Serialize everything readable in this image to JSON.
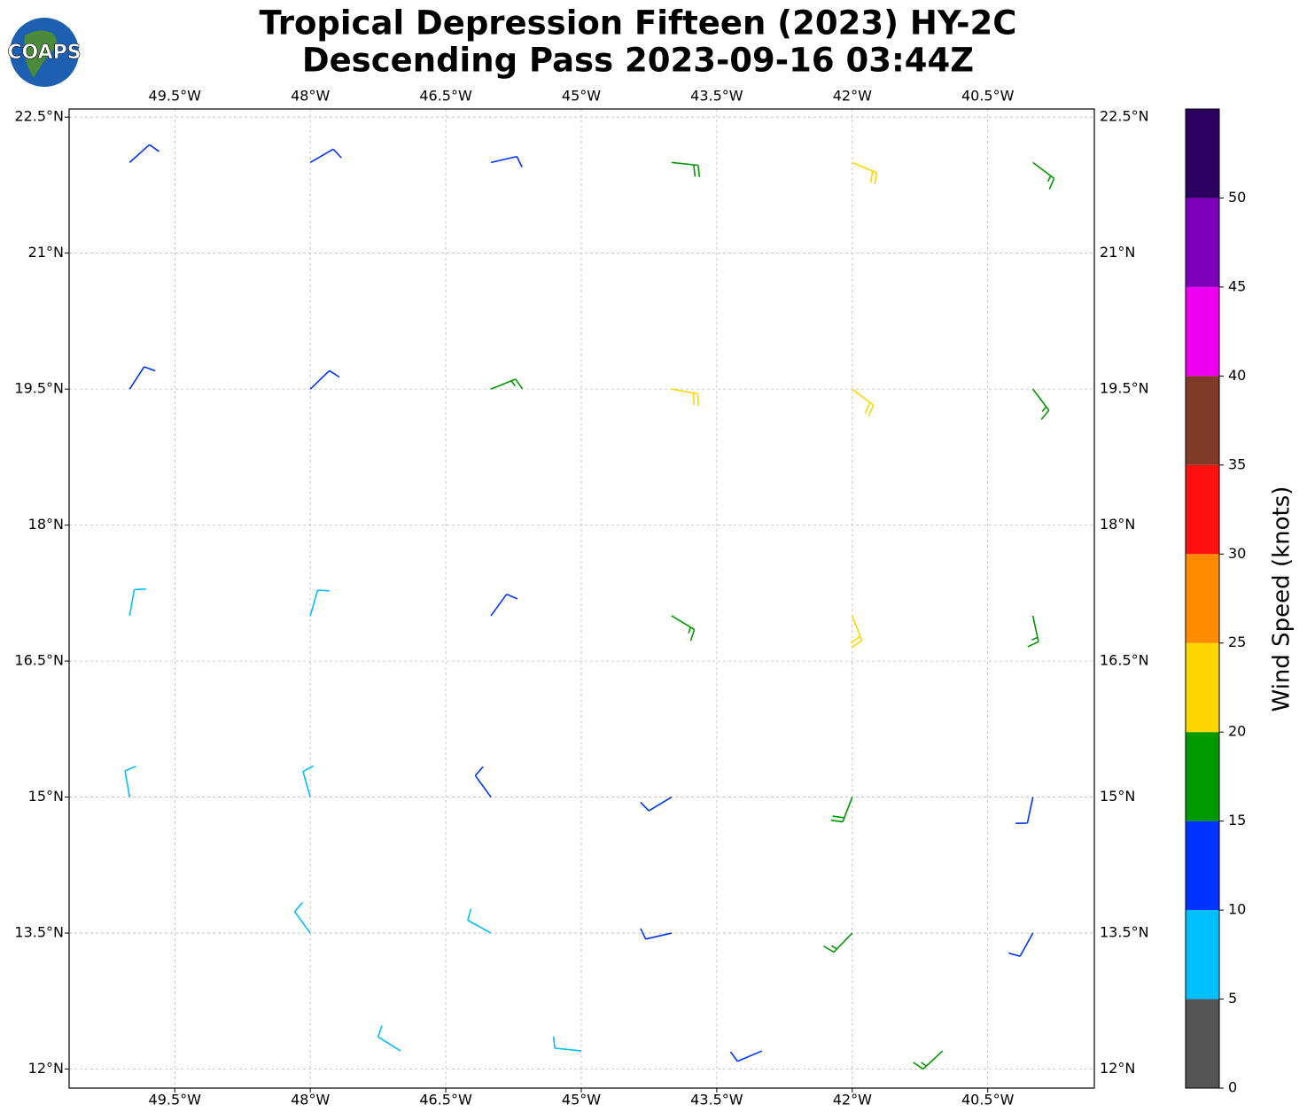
{
  "logo": "COAPS",
  "chart_data": {
    "type": "barbs",
    "title": "Tropical Depression Fifteen (2023) HY-2C",
    "subtitle": "Descending Pass 2023-09-16 03:44Z",
    "xlim": [
      -50.67,
      -39.32
    ],
    "ylim": [
      11.79,
      22.59
    ],
    "xticks": [
      {
        "value": -49.5,
        "label": "49.5°W"
      },
      {
        "value": -48,
        "label": "48°W"
      },
      {
        "value": -46.5,
        "label": "46.5°W"
      },
      {
        "value": -45,
        "label": "45°W"
      },
      {
        "value": -43.5,
        "label": "43.5°W"
      },
      {
        "value": -42,
        "label": "42°W"
      },
      {
        "value": -40.5,
        "label": "40.5°W"
      }
    ],
    "yticks": [
      {
        "value": 12,
        "label": "12°N"
      },
      {
        "value": 13.5,
        "label": "13.5°N"
      },
      {
        "value": 15,
        "label": "15°N"
      },
      {
        "value": 16.5,
        "label": "16.5°N"
      },
      {
        "value": 18,
        "label": "18°N"
      },
      {
        "value": 19.5,
        "label": "19.5°N"
      },
      {
        "value": 21,
        "label": "21°N"
      },
      {
        "value": 22.5,
        "label": "22.5°N"
      }
    ],
    "grid": true,
    "barbs": {
      "lon": [
        -50,
        -48,
        -46,
        -44,
        -42,
        -40,
        -50,
        -48,
        -46,
        -44,
        -42,
        -40,
        -50,
        -48,
        -46,
        -44,
        -42,
        -40,
        -50,
        -48,
        -46,
        -44,
        -42,
        -40,
        -48,
        -46,
        -44,
        -42,
        -40,
        -47,
        -45,
        -43,
        -41
      ],
      "lat": [
        22,
        22,
        22,
        22,
        22,
        22,
        19.5,
        19.5,
        19.5,
        19.5,
        19.5,
        19.5,
        17,
        17,
        17,
        17,
        17,
        17,
        15,
        15,
        15,
        15,
        15,
        15,
        13.5,
        13.5,
        13.5,
        13.5,
        13.5,
        12.2,
        12.2,
        12.2,
        12.2
      ],
      "speed": [
        12,
        12,
        12,
        18,
        22,
        17,
        12,
        12,
        17,
        22,
        22,
        17,
        8,
        8,
        12,
        17,
        22,
        17,
        8,
        8,
        12,
        12,
        18,
        12,
        8,
        8,
        12,
        17,
        12,
        8,
        8,
        12,
        17
      ],
      "direction": [
        48,
        60,
        77,
        96,
        113,
        127,
        33,
        46,
        68,
        100,
        127,
        143,
        10,
        16,
        36,
        121,
        159,
        168,
        350,
        344,
        324,
        239,
        201,
        192,
        324,
        299,
        257,
        224,
        209,
        302,
        276,
        247,
        227
      ]
    },
    "colorbar": {
      "label": "Wind Speed (knots)",
      "lim": [
        0,
        55
      ],
      "ticks": [
        0,
        5,
        10,
        15,
        20,
        25,
        30,
        35,
        40,
        45,
        50
      ],
      "colors": [
        "#555555",
        "#00bfff",
        "#0033ff",
        "#009900",
        "#ffd700",
        "#ff8c00",
        "#ff1010",
        "#7f3a28",
        "#ee00ee",
        "#7f00bb",
        "#2b005f"
      ]
    }
  }
}
